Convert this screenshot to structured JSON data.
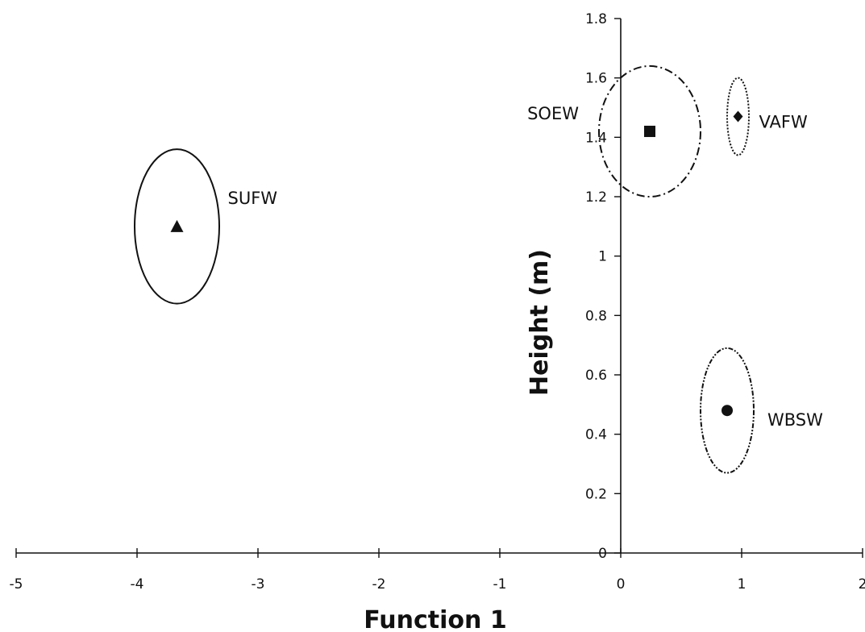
{
  "chart_data": {
    "type": "scatter",
    "xlabel": "Function 1",
    "ylabel": "Height (m)",
    "xlim": [
      -5,
      2
    ],
    "ylim": [
      0,
      1.8
    ],
    "xticks": [
      -5,
      -4,
      -3,
      -2,
      -1,
      0,
      1,
      2
    ],
    "xtick_labels": [
      "-5",
      "-4",
      "-3",
      "-2",
      "-1",
      "0",
      "1",
      "2"
    ],
    "yticks": [
      0,
      0.2,
      0.4,
      0.6,
      0.8,
      1,
      1.2,
      1.4,
      1.6,
      1.8
    ],
    "ytick_labels": [
      "0",
      "0.2",
      "0.4",
      "0.6",
      "0.8",
      "1",
      "1.2",
      "1.4",
      "1.6",
      "1.8"
    ],
    "grid": false,
    "series": [
      {
        "name": "SUFW",
        "marker": "triangle",
        "x": -3.67,
        "y": 1.1,
        "ellipse_rx": 0.35,
        "ellipse_ry": 0.26,
        "ellipse_style": "solid"
      },
      {
        "name": "SOEW",
        "marker": "square",
        "x": 0.24,
        "y": 1.42,
        "ellipse_rx": 0.42,
        "ellipse_ry": 0.22,
        "ellipse_style": "dash-dot"
      },
      {
        "name": "VAFW",
        "marker": "diamond",
        "x": 0.97,
        "y": 1.47,
        "ellipse_rx": 0.09,
        "ellipse_ry": 0.13,
        "ellipse_style": "dotted"
      },
      {
        "name": "WBSW",
        "marker": "circle",
        "x": 0.88,
        "y": 0.48,
        "ellipse_rx": 0.22,
        "ellipse_ry": 0.21,
        "ellipse_style": "dash-dot-dot"
      }
    ]
  }
}
